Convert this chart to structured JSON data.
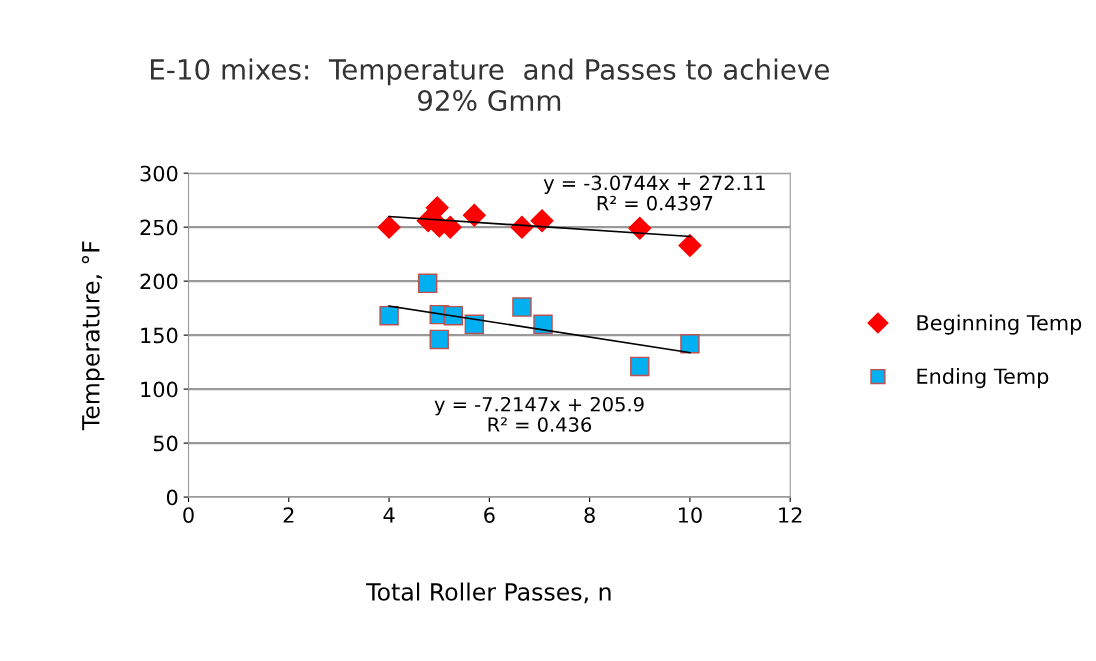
{
  "chart_data": {
    "type": "scatter",
    "title": "E-10 mixes:  Temperature  and Passes to achieve\n92% Gmm",
    "xlabel": "Total Roller Passes, n",
    "ylabel": "Temperature, °F",
    "xlim": [
      0,
      12
    ],
    "xticks": [
      0,
      2,
      4,
      6,
      8,
      10,
      12
    ],
    "ylim": [
      0,
      300
    ],
    "yticks": [
      0,
      50,
      100,
      150,
      200,
      250,
      300
    ],
    "grid": "y",
    "legend": "right",
    "series": [
      {
        "name": "Beginning Temp",
        "color": "#ff0000",
        "marker": "diamond",
        "x": [
          4,
          4.96,
          4.78,
          5,
          5.22,
          5.7,
          6.65,
          7.05,
          9,
          10
        ],
        "values": [
          250,
          268,
          256,
          251,
          250,
          261,
          250,
          256,
          249,
          233
        ]
      },
      {
        "name": "Ending Temp",
        "color": "#00b0f0",
        "marker": "square",
        "x": [
          4,
          4.77,
          5,
          5.28,
          5,
          5.7,
          6.65,
          7.07,
          9,
          10
        ],
        "values": [
          168,
          198,
          169,
          168,
          146,
          160,
          176,
          160,
          121,
          142
        ]
      },
      {
        "type": "line",
        "color": "#000000",
        "marker": "none",
        "x": [
          4,
          10
        ],
        "values": [
          259.8,
          241.4
        ]
      },
      {
        "type": "line",
        "color": "#000000",
        "marker": "none",
        "x": [
          4,
          10
        ],
        "values": [
          177.0,
          133.8
        ]
      }
    ],
    "annotations": [
      "y = -3.0744x + 272.11\nR² = 0.4397",
      "y = -7.2147x + 205.9\nR² = 0.436"
    ]
  }
}
